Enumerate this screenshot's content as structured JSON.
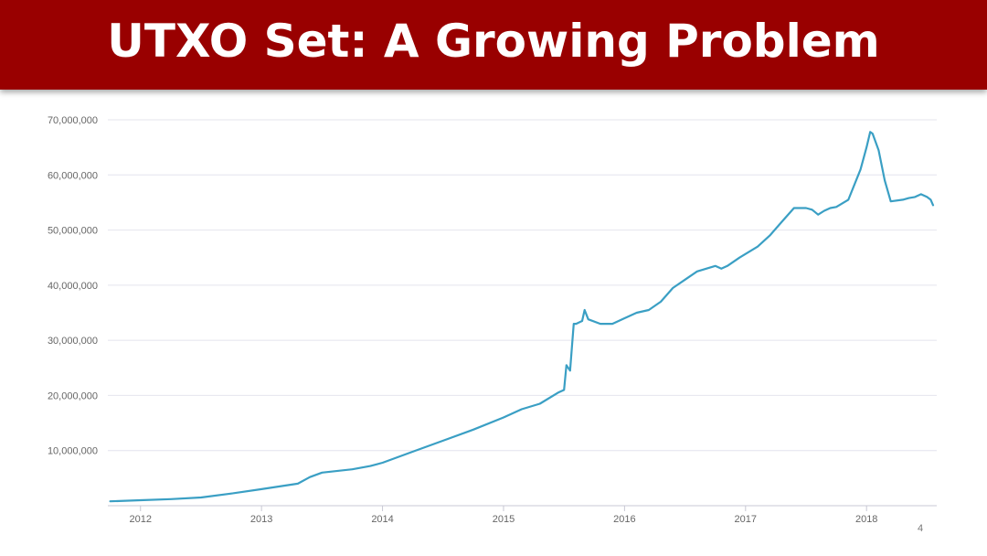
{
  "slide": {
    "title": "UTXO Set: A Growing Problem",
    "page_number": "4"
  },
  "colors": {
    "header_bg": "#990000",
    "line": "#3a9fc4",
    "grid": "#e4e4ee"
  },
  "chart_data": {
    "type": "line",
    "title": "",
    "xlabel": "",
    "ylabel": "",
    "grid": true,
    "legend": "none",
    "xlim": [
      2011.73,
      2018.58
    ],
    "ylim": [
      0,
      70000000
    ],
    "x_ticks": [
      {
        "value": 2012,
        "label": "2012"
      },
      {
        "value": 2013,
        "label": "2013"
      },
      {
        "value": 2014,
        "label": "2014"
      },
      {
        "value": 2015,
        "label": "2015"
      },
      {
        "value": 2016,
        "label": "2016"
      },
      {
        "value": 2017,
        "label": "2017"
      },
      {
        "value": 2018,
        "label": "2018"
      }
    ],
    "y_ticks": [
      {
        "value": 10000000,
        "label": "10,000,000"
      },
      {
        "value": 20000000,
        "label": "20,000,000"
      },
      {
        "value": 30000000,
        "label": "30,000,000"
      },
      {
        "value": 40000000,
        "label": "40,000,000"
      },
      {
        "value": 50000000,
        "label": "50,000,000"
      },
      {
        "value": 60000000,
        "label": "60,000,000"
      },
      {
        "value": 70000000,
        "label": "70,000,000"
      }
    ],
    "series": [
      {
        "x": [
          2011.75,
          2012.0,
          2012.25,
          2012.5,
          2012.75,
          2013.0,
          2013.15,
          2013.3,
          2013.4,
          2013.5,
          2013.75,
          2013.9,
          2014.0,
          2014.25,
          2014.5,
          2014.75,
          2015.0,
          2015.1,
          2015.15,
          2015.3,
          2015.45,
          2015.5,
          2015.52,
          2015.55,
          2015.58,
          2015.6,
          2015.65,
          2015.67,
          2015.7,
          2015.8,
          2015.9,
          2016.0,
          2016.1,
          2016.2,
          2016.3,
          2016.4,
          2016.5,
          2016.6,
          2016.75,
          2016.8,
          2016.85,
          2016.95,
          2017.1,
          2017.2,
          2017.3,
          2017.4,
          2017.5,
          2017.55,
          2017.6,
          2017.65,
          2017.7,
          2017.75,
          2017.85,
          2017.95,
          2018.0,
          2018.03,
          2018.05,
          2018.1,
          2018.15,
          2018.2,
          2018.3,
          2018.35,
          2018.4,
          2018.45,
          2018.5,
          2018.53,
          2018.55
        ],
        "y": [
          800000,
          1000000,
          1200000,
          1500000,
          2200000,
          3000000,
          3500000,
          4000000,
          5200000,
          6000000,
          6600000,
          7200000,
          7800000,
          9800000,
          11800000,
          13800000,
          16000000,
          17000000,
          17500000,
          18500000,
          20500000,
          21000000,
          25500000,
          24500000,
          33000000,
          33000000,
          33500000,
          35500000,
          33800000,
          33000000,
          33000000,
          34000000,
          35000000,
          35500000,
          37000000,
          39500000,
          41000000,
          42500000,
          43500000,
          43000000,
          43500000,
          45000000,
          47000000,
          49000000,
          51500000,
          54000000,
          54000000,
          53700000,
          52800000,
          53500000,
          54000000,
          54200000,
          55500000,
          61000000,
          65000000,
          67800000,
          67500000,
          64500000,
          59000000,
          55200000,
          55500000,
          55800000,
          56000000,
          56500000,
          56000000,
          55500000,
          54500000
        ]
      }
    ]
  }
}
